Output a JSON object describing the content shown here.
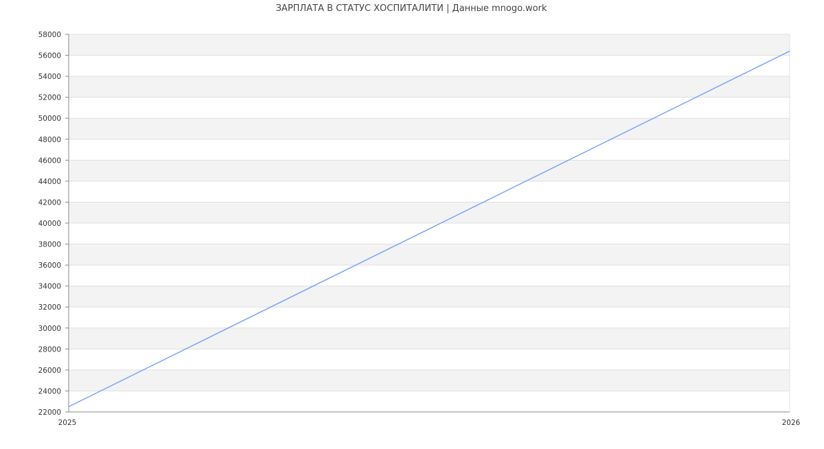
{
  "chart_data": {
    "type": "line",
    "title": "ЗАРПЛАТА В СТАТУС ХОСПИТАЛИТИ | Данные mnogo.work",
    "xlabel": "",
    "ylabel": "",
    "x": [
      "2025",
      "2026"
    ],
    "series": [
      {
        "values": [
          22500,
          56400
        ],
        "color": "#7aa3f5"
      }
    ],
    "ylim": [
      22000,
      58000
    ],
    "yticks": [
      22000,
      24000,
      26000,
      28000,
      30000,
      32000,
      34000,
      36000,
      38000,
      40000,
      42000,
      44000,
      46000,
      48000,
      50000,
      52000,
      54000,
      56000,
      58000
    ],
    "grid": true,
    "band_colors": [
      "#f3f3f3",
      "#ffffff"
    ],
    "legend": "none"
  }
}
